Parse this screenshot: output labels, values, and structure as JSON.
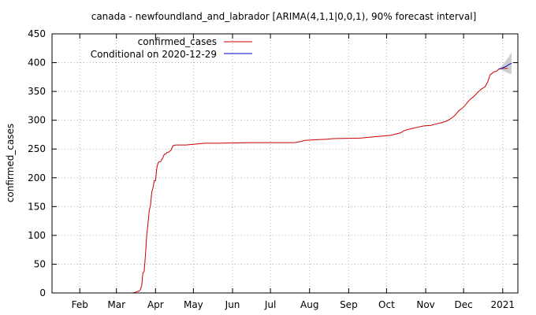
{
  "chart_data": {
    "type": "line",
    "title": "canada - newfoundland_and_labrador [ARIMA(4,1,1|0,0,1), 90% forecast interval]",
    "xlabel": "",
    "ylabel": "confirmed_cases",
    "xlim": [
      "2020-01-10",
      "2021-01-13"
    ],
    "ylim": [
      0,
      450
    ],
    "yticks": [
      0,
      50,
      100,
      150,
      200,
      250,
      300,
      350,
      400,
      450
    ],
    "xticks": [
      {
        "date": "2020-02-01",
        "label": "Feb"
      },
      {
        "date": "2020-03-01",
        "label": "Mar"
      },
      {
        "date": "2020-04-01",
        "label": "Apr"
      },
      {
        "date": "2020-05-01",
        "label": "May"
      },
      {
        "date": "2020-06-01",
        "label": "Jun"
      },
      {
        "date": "2020-07-01",
        "label": "Jul"
      },
      {
        "date": "2020-08-01",
        "label": "Aug"
      },
      {
        "date": "2020-09-01",
        "label": "Sep"
      },
      {
        "date": "2020-10-01",
        "label": "Oct"
      },
      {
        "date": "2020-11-01",
        "label": "Nov"
      },
      {
        "date": "2020-12-01",
        "label": "Dec"
      },
      {
        "date": "2021-01-01",
        "label": "2021"
      }
    ],
    "grid": true,
    "legend_position": "top-left",
    "series": [
      {
        "name": "confirmed_cases",
        "color": "#cc0000",
        "points": [
          [
            "2020-03-14",
            0
          ],
          [
            "2020-03-16",
            1
          ],
          [
            "2020-03-17",
            2
          ],
          [
            "2020-03-18",
            3
          ],
          [
            "2020-03-19",
            3
          ],
          [
            "2020-03-20",
            6
          ],
          [
            "2020-03-21",
            12
          ],
          [
            "2020-03-22",
            35
          ],
          [
            "2020-03-23",
            37
          ],
          [
            "2020-03-24",
            66
          ],
          [
            "2020-03-25",
            100
          ],
          [
            "2020-03-26",
            120
          ],
          [
            "2020-03-27",
            143
          ],
          [
            "2020-03-28",
            152
          ],
          [
            "2020-03-29",
            175
          ],
          [
            "2020-03-30",
            183
          ],
          [
            "2020-03-31",
            195
          ],
          [
            "2020-04-01",
            195
          ],
          [
            "2020-04-02",
            217
          ],
          [
            "2020-04-03",
            226
          ],
          [
            "2020-04-04",
            228
          ],
          [
            "2020-04-05",
            228
          ],
          [
            "2020-04-06",
            232
          ],
          [
            "2020-04-07",
            236
          ],
          [
            "2020-04-08",
            241
          ],
          [
            "2020-04-09",
            241
          ],
          [
            "2020-04-10",
            244
          ],
          [
            "2020-04-11",
            244
          ],
          [
            "2020-04-12",
            246
          ],
          [
            "2020-04-13",
            247
          ],
          [
            "2020-04-14",
            252
          ],
          [
            "2020-04-15",
            256
          ],
          [
            "2020-04-17",
            257
          ],
          [
            "2020-04-25",
            257
          ],
          [
            "2020-04-30",
            258
          ],
          [
            "2020-05-05",
            259
          ],
          [
            "2020-05-10",
            260
          ],
          [
            "2020-05-20",
            260
          ],
          [
            "2020-06-15",
            261
          ],
          [
            "2020-07-20",
            261
          ],
          [
            "2020-07-22",
            262
          ],
          [
            "2020-07-25",
            263
          ],
          [
            "2020-07-28",
            265
          ],
          [
            "2020-08-05",
            266
          ],
          [
            "2020-08-15",
            267
          ],
          [
            "2020-08-20",
            268
          ],
          [
            "2020-09-10",
            269
          ],
          [
            "2020-09-15",
            270
          ],
          [
            "2020-09-20",
            271
          ],
          [
            "2020-09-25",
            272
          ],
          [
            "2020-10-01",
            273
          ],
          [
            "2020-10-05",
            274
          ],
          [
            "2020-10-08",
            276
          ],
          [
            "2020-10-12",
            278
          ],
          [
            "2020-10-15",
            282
          ],
          [
            "2020-10-18",
            284
          ],
          [
            "2020-10-22",
            286
          ],
          [
            "2020-10-26",
            288
          ],
          [
            "2020-10-30",
            290
          ],
          [
            "2020-11-05",
            291
          ],
          [
            "2020-11-10",
            294
          ],
          [
            "2020-11-14",
            296
          ],
          [
            "2020-11-18",
            299
          ],
          [
            "2020-11-21",
            303
          ],
          [
            "2020-11-24",
            308
          ],
          [
            "2020-11-27",
            316
          ],
          [
            "2020-11-30",
            321
          ],
          [
            "2020-12-03",
            328
          ],
          [
            "2020-12-06",
            336
          ],
          [
            "2020-12-09",
            341
          ],
          [
            "2020-12-12",
            348
          ],
          [
            "2020-12-15",
            354
          ],
          [
            "2020-12-18",
            358
          ],
          [
            "2020-12-20",
            366
          ],
          [
            "2020-12-21",
            372
          ],
          [
            "2020-12-22",
            379
          ],
          [
            "2020-12-24",
            382
          ],
          [
            "2020-12-25",
            384
          ],
          [
            "2020-12-27",
            385
          ],
          [
            "2020-12-29",
            389
          ],
          [
            "2020-12-31",
            390
          ],
          [
            "2021-01-02",
            390
          ],
          [
            "2021-01-03",
            390
          ],
          [
            "2021-01-05",
            390
          ]
        ]
      },
      {
        "name": "Conditional on 2020-12-29",
        "color": "#0000cc",
        "points": [
          [
            "2020-12-29",
            389
          ],
          [
            "2020-12-31",
            390
          ],
          [
            "2021-01-02",
            392
          ],
          [
            "2021-01-04",
            394
          ],
          [
            "2021-01-06",
            397
          ],
          [
            "2021-01-08",
            399
          ]
        ],
        "interval": {
          "color": "#c8c8c8",
          "lower": [
            [
              "2020-12-29",
              389
            ],
            [
              "2020-12-31",
              387
            ],
            [
              "2021-01-02",
              385
            ],
            [
              "2021-01-04",
              383
            ],
            [
              "2021-01-06",
              381
            ],
            [
              "2021-01-08",
              380
            ]
          ],
          "upper": [
            [
              "2020-12-29",
              389
            ],
            [
              "2020-12-31",
              394
            ],
            [
              "2021-01-02",
              399
            ],
            [
              "2021-01-04",
              405
            ],
            [
              "2021-01-06",
              411
            ],
            [
              "2021-01-08",
              418
            ]
          ]
        }
      }
    ]
  }
}
